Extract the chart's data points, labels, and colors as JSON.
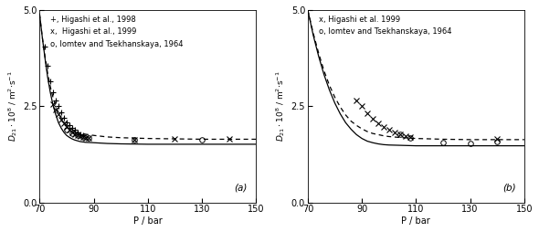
{
  "panel_a": {
    "title": "(a)",
    "xlabel": "P / bar",
    "ylabel_line1": "D",
    "ylabel_sub": "21",
    "ylabel_line2": " · 10⁸ / m²·s⁻¹",
    "xlim": [
      70,
      150
    ],
    "ylim": [
      0.0,
      5.0
    ],
    "xticks": [
      70,
      90,
      110,
      130,
      150
    ],
    "yticks": [
      0.0,
      2.5,
      5.0
    ],
    "legend": [
      "+, Higashi et al., 1998",
      "x,  Higashi et al., 1999",
      "o, Iomtev and Tsekhanskaya, 1964"
    ],
    "data_plus": [
      [
        72,
        4.05
      ],
      [
        73,
        3.55
      ],
      [
        74,
        3.15
      ],
      [
        75,
        2.85
      ],
      [
        76,
        2.65
      ],
      [
        77,
        2.5
      ],
      [
        78,
        2.35
      ],
      [
        79,
        2.2
      ],
      [
        80,
        2.08
      ],
      [
        81,
        2.0
      ],
      [
        82,
        1.93
      ],
      [
        83,
        1.88
      ],
      [
        84,
        1.82
      ],
      [
        85,
        1.78
      ],
      [
        86,
        1.75
      ]
    ],
    "data_x": [
      [
        75,
        2.55
      ],
      [
        76,
        2.4
      ],
      [
        77,
        2.28
      ],
      [
        78,
        2.15
      ],
      [
        79,
        2.05
      ],
      [
        80,
        1.96
      ],
      [
        81,
        1.88
      ],
      [
        82,
        1.82
      ],
      [
        83,
        1.78
      ],
      [
        84,
        1.75
      ],
      [
        85,
        1.72
      ],
      [
        86,
        1.7
      ],
      [
        87,
        1.68
      ],
      [
        88,
        1.67
      ],
      [
        105,
        1.62
      ],
      [
        120,
        1.65
      ],
      [
        140,
        1.65
      ]
    ],
    "data_o": [
      [
        80,
        1.88
      ],
      [
        82,
        1.8
      ],
      [
        84,
        1.75
      ],
      [
        86,
        1.7
      ],
      [
        88,
        1.67
      ],
      [
        105,
        1.62
      ],
      [
        130,
        1.62
      ]
    ],
    "curve_solid_x": [
      70,
      71,
      72,
      73,
      74,
      75,
      76,
      77,
      78,
      79,
      80,
      81,
      82,
      83,
      84,
      85,
      87,
      90,
      95,
      100,
      110,
      120,
      130,
      140,
      150
    ],
    "curve_solid_y": [
      4.9,
      4.3,
      3.75,
      3.25,
      2.85,
      2.52,
      2.28,
      2.07,
      1.93,
      1.82,
      1.74,
      1.69,
      1.65,
      1.62,
      1.6,
      1.58,
      1.56,
      1.55,
      1.53,
      1.52,
      1.51,
      1.51,
      1.51,
      1.51,
      1.51
    ],
    "curve_dotted_x": [
      70,
      71,
      72,
      73,
      74,
      75,
      76,
      77,
      78,
      79,
      80,
      81,
      82,
      83,
      84,
      85,
      87,
      90,
      95,
      100,
      110,
      120,
      130,
      140,
      150
    ],
    "curve_dotted_y": [
      4.9,
      4.3,
      3.8,
      3.35,
      3.0,
      2.72,
      2.5,
      2.32,
      2.18,
      2.07,
      2.0,
      1.94,
      1.89,
      1.85,
      1.82,
      1.8,
      1.77,
      1.74,
      1.7,
      1.68,
      1.66,
      1.65,
      1.64,
      1.64,
      1.64
    ]
  },
  "panel_b": {
    "title": "(b)",
    "xlabel": "P / bar",
    "ylabel_line1": "D",
    "ylabel_sub": "21",
    "ylabel_line2": " · 10⁸ / m²·s⁻¹",
    "xlim": [
      70,
      150
    ],
    "ylim": [
      0.0,
      5.0
    ],
    "xticks": [
      70,
      90,
      110,
      130,
      150
    ],
    "yticks": [
      0.0,
      2.5,
      5.0
    ],
    "legend": [
      "x, Higashi et al. 1999",
      "o, Iomtev and Tsekhanskaya, 1964"
    ],
    "data_x": [
      [
        88,
        2.65
      ],
      [
        90,
        2.5
      ],
      [
        92,
        2.32
      ],
      [
        94,
        2.18
      ],
      [
        96,
        2.05
      ],
      [
        98,
        1.95
      ],
      [
        100,
        1.88
      ],
      [
        102,
        1.82
      ],
      [
        104,
        1.78
      ],
      [
        106,
        1.73
      ],
      [
        108,
        1.7
      ],
      [
        140,
        1.65
      ]
    ],
    "data_o": [
      [
        104,
        1.78
      ],
      [
        108,
        1.68
      ],
      [
        120,
        1.55
      ],
      [
        130,
        1.52
      ],
      [
        140,
        1.58
      ]
    ],
    "curve_solid_x": [
      70,
      72,
      74,
      76,
      78,
      80,
      82,
      84,
      86,
      88,
      90,
      92,
      94,
      96,
      98,
      100,
      105,
      110,
      120,
      130,
      140,
      150
    ],
    "curve_solid_y": [
      5.0,
      4.35,
      3.8,
      3.32,
      2.92,
      2.58,
      2.3,
      2.07,
      1.9,
      1.76,
      1.66,
      1.59,
      1.55,
      1.52,
      1.5,
      1.49,
      1.48,
      1.47,
      1.47,
      1.47,
      1.47,
      1.47
    ],
    "curve_dotted_x": [
      70,
      72,
      74,
      76,
      78,
      80,
      82,
      84,
      86,
      88,
      90,
      92,
      94,
      96,
      98,
      100,
      105,
      110,
      120,
      130,
      140,
      150
    ],
    "curve_dotted_y": [
      5.0,
      4.4,
      3.88,
      3.42,
      3.04,
      2.73,
      2.48,
      2.27,
      2.11,
      2.0,
      1.91,
      1.84,
      1.79,
      1.76,
      1.73,
      1.71,
      1.68,
      1.66,
      1.64,
      1.63,
      1.63,
      1.63
    ]
  }
}
